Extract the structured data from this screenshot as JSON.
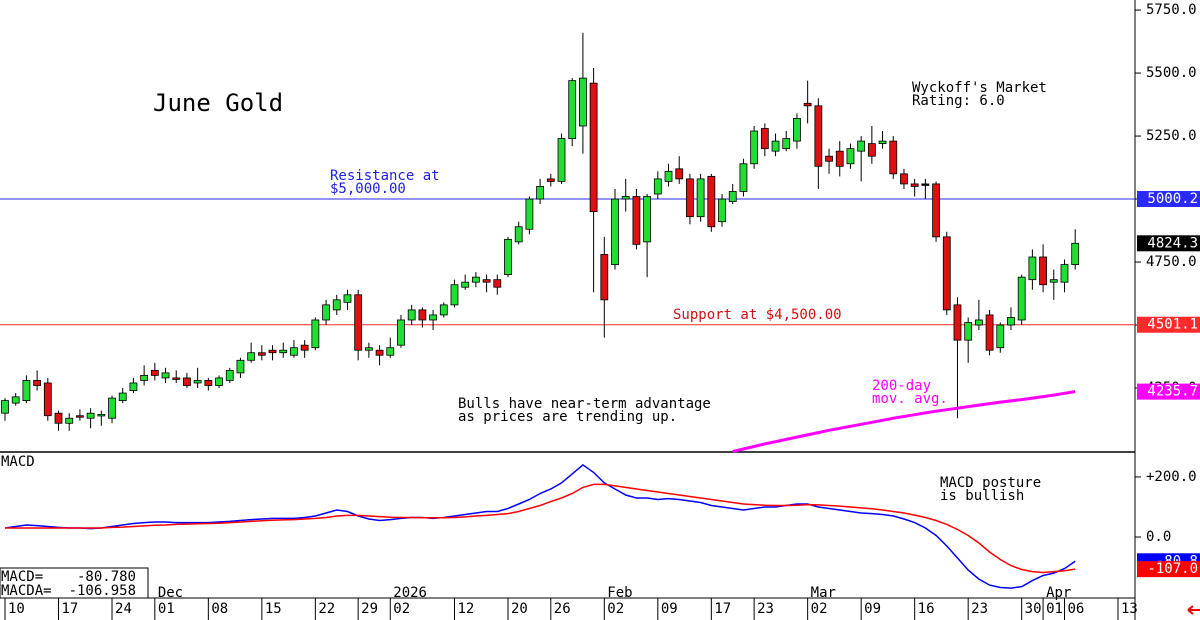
{
  "chart_data": [
    {
      "type": "candlestick",
      "title": "June Gold",
      "categories": [
        "10",
        null,
        null,
        null,
        null,
        "17",
        null,
        null,
        null,
        null,
        "24",
        null,
        null,
        null,
        "01",
        null,
        null,
        null,
        null,
        "08",
        null,
        null,
        null,
        null,
        "15",
        null,
        null,
        null,
        null,
        "22",
        null,
        null,
        null,
        "29",
        null,
        null,
        "02",
        null,
        null,
        null,
        null,
        null,
        "12",
        null,
        null,
        null,
        null,
        "20",
        null,
        null,
        null,
        "26",
        null,
        null,
        null,
        null,
        "02",
        null,
        null,
        null,
        null,
        "09",
        null,
        null,
        null,
        null,
        "17",
        null,
        null,
        null,
        "23",
        null,
        null,
        null,
        null,
        "02",
        null,
        null,
        null,
        null,
        "09",
        null,
        null,
        null,
        null,
        "16",
        null,
        null,
        null,
        null,
        "23",
        null,
        null,
        null,
        null,
        "30",
        null,
        "01",
        null,
        "06",
        null,
        null,
        null,
        null,
        "13"
      ],
      "months": [
        null,
        null,
        null,
        null,
        null,
        null,
        null,
        null,
        null,
        null,
        null,
        null,
        null,
        null,
        "Dec",
        null,
        null,
        null,
        null,
        null,
        null,
        null,
        null,
        null,
        null,
        null,
        null,
        null,
        null,
        null,
        null,
        null,
        null,
        null,
        null,
        null,
        "2026",
        null,
        null,
        null,
        null,
        null,
        null,
        null,
        null,
        null,
        null,
        null,
        null,
        null,
        null,
        null,
        null,
        null,
        null,
        null,
        "Feb",
        null,
        null,
        null,
        null,
        null,
        null,
        null,
        null,
        null,
        null,
        null,
        null,
        null,
        null,
        null,
        null,
        null,
        null,
        "Mar",
        null,
        null,
        null,
        null,
        null,
        null,
        null,
        null,
        null,
        null,
        null,
        null,
        null,
        null,
        null,
        null,
        null,
        null,
        null,
        null,
        null,
        "Apr",
        null,
        null,
        null,
        null,
        null,
        null,
        null
      ],
      "open": [
        4150,
        4190,
        4200,
        4280,
        4270,
        4150,
        4110,
        4140,
        4130,
        4140,
        4130,
        4200,
        4240,
        4280,
        4320,
        4290,
        4290,
        4290,
        4270,
        4280,
        4260,
        4280,
        4310,
        4360,
        4390,
        4400,
        4390,
        4380,
        4420,
        4410,
        4520,
        4560,
        4590,
        4620,
        4400,
        4400,
        4380,
        4420,
        4520,
        4560,
        4520,
        4540,
        4580,
        4650,
        4670,
        4680,
        4680,
        4700,
        4830,
        4880,
        5000,
        5080,
        5070,
        5240,
        5290,
        5460,
        4780,
        4740,
        5000,
        5010,
        4830,
        5020,
        5070,
        5120,
        5080,
        4930,
        5090,
        4910,
        4990,
        5030,
        5140,
        5280,
        5190,
        5200,
        5230,
        5380,
        5370,
        5170,
        5190,
        5140,
        5190,
        5220,
        5220,
        5230,
        5100,
        5060,
        5060,
        5060,
        4850,
        4580,
        4440,
        4500,
        4540,
        4410,
        4500,
        4520,
        4680,
        4770,
        4670,
        4670,
        4740,
        null,
        null,
        null,
        null
      ],
      "high": [
        4210,
        4230,
        4300,
        4320,
        4290,
        4160,
        4150,
        4165,
        4170,
        4160,
        4220,
        4250,
        4290,
        4340,
        4350,
        4330,
        4320,
        4310,
        4330,
        4290,
        4300,
        4330,
        4370,
        4430,
        4420,
        4420,
        4430,
        4440,
        4440,
        4530,
        4600,
        4620,
        4640,
        4640,
        4430,
        4420,
        4450,
        4540,
        4580,
        4570,
        4560,
        4590,
        4680,
        4700,
        4710,
        4700,
        4700,
        4850,
        4910,
        5010,
        5080,
        5100,
        5260,
        5480,
        5660,
        5520,
        4850,
        5040,
        5080,
        5040,
        5020,
        5110,
        5140,
        5170,
        5100,
        5100,
        5100,
        5020,
        5060,
        5160,
        5290,
        5300,
        5260,
        5270,
        5340,
        5470,
        5400,
        5200,
        5230,
        5220,
        5250,
        5290,
        5270,
        5250,
        5120,
        5080,
        5080,
        5070,
        4870,
        4610,
        4530,
        4600,
        4560,
        4510,
        4570,
        4700,
        4800,
        4820,
        4720,
        4760,
        4880,
        null,
        null,
        null,
        null
      ],
      "low": [
        4120,
        4180,
        4190,
        4240,
        4120,
        4080,
        4080,
        4120,
        4090,
        4100,
        4110,
        4190,
        4230,
        4260,
        4280,
        4270,
        4270,
        4250,
        4250,
        4240,
        4250,
        4270,
        4290,
        4350,
        4360,
        4360,
        4370,
        4370,
        4370,
        4400,
        4500,
        4540,
        4560,
        4360,
        4370,
        4340,
        4370,
        4410,
        4500,
        4490,
        4480,
        4530,
        4570,
        4640,
        4650,
        4630,
        4620,
        4690,
        4820,
        4860,
        4980,
        5050,
        5060,
        5210,
        5180,
        4630,
        4450,
        4720,
        4950,
        4800,
        4690,
        5000,
        5050,
        5060,
        4900,
        4910,
        4870,
        4890,
        4980,
        5010,
        5120,
        5170,
        5170,
        5190,
        5200,
        5300,
        5040,
        5100,
        5090,
        5120,
        5070,
        5140,
        5200,
        5080,
        5040,
        5010,
        5000,
        4830,
        4540,
        4130,
        4350,
        4480,
        4380,
        4390,
        4480,
        4500,
        4640,
        4630,
        4600,
        4630,
        4720,
        null,
        null,
        null,
        null
      ],
      "close": [
        4200,
        4215,
        4280,
        4260,
        4140,
        4110,
        4130,
        4135,
        4150,
        4145,
        4210,
        4230,
        4270,
        4300,
        4300,
        4310,
        4285,
        4260,
        4280,
        4260,
        4290,
        4320,
        4360,
        4390,
        4380,
        4390,
        4400,
        4410,
        4400,
        4520,
        4580,
        4600,
        4620,
        4400,
        4410,
        4380,
        4410,
        4520,
        4560,
        4520,
        4540,
        4580,
        4660,
        4670,
        4690,
        4670,
        4650,
        4840,
        4890,
        5000,
        5050,
        5070,
        5240,
        5470,
        5480,
        4950,
        4600,
        5000,
        5010,
        4820,
        5010,
        5080,
        5110,
        5080,
        4930,
        5080,
        4890,
        5000,
        5030,
        5140,
        5270,
        5200,
        5230,
        5240,
        5320,
        5370,
        5130,
        5150,
        5130,
        5200,
        5230,
        5170,
        5230,
        5100,
        5060,
        5050,
        5060,
        4850,
        4560,
        4440,
        4510,
        4520,
        4400,
        4500,
        4530,
        4690,
        4770,
        4660,
        4680,
        4740,
        4824.3,
        null,
        null,
        null,
        null
      ],
      "up_color": "#22dd33",
      "down_color": "#dd1111",
      "moving_average": {
        "color": "#ff00ff",
        "values": [
          null,
          null,
          null,
          null,
          null,
          null,
          null,
          null,
          null,
          null,
          null,
          null,
          null,
          null,
          null,
          null,
          null,
          null,
          null,
          null,
          null,
          null,
          null,
          null,
          null,
          null,
          null,
          null,
          null,
          null,
          null,
          null,
          null,
          null,
          null,
          null,
          null,
          null,
          null,
          null,
          null,
          null,
          null,
          null,
          null,
          null,
          null,
          null,
          null,
          null,
          null,
          null,
          null,
          null,
          null,
          null,
          null,
          null,
          null,
          null,
          null,
          null,
          null,
          null,
          null,
          null,
          null,
          null,
          3998,
          4008,
          4018,
          4028,
          4037,
          4046,
          4055,
          4064,
          4073,
          4082,
          4090,
          4098,
          4106,
          4114,
          4122,
          4130,
          4137,
          4144,
          4151,
          4158,
          4164,
          4170,
          4176,
          4182,
          4188,
          4194,
          4199,
          4204,
          4210,
          4216,
          4222,
          4229,
          4235.7,
          null,
          null,
          null,
          null
        ]
      },
      "levels": [
        {
          "value": 5000.2,
          "label": "5000.2",
          "color": "#2a2aff"
        },
        {
          "value": 4501.1,
          "label": "4501.1",
          "color": "#ff2a2a"
        }
      ],
      "ylim": [
        3996,
        5790
      ],
      "yticks": [
        {
          "value": 5750,
          "label": "5750.0"
        },
        {
          "value": 5500,
          "label": "5500.0"
        },
        {
          "value": 5250,
          "label": "5250.0"
        },
        {
          "value": 5000,
          "label": "5000.0"
        },
        {
          "value": 4750,
          "label": "4750.0"
        },
        {
          "value": 4500,
          "label": "4500.0"
        },
        {
          "value": 4250,
          "label": "4250.0"
        }
      ],
      "annotations": [
        {
          "lines": [
            "Wyckoff's Market",
            "Rating: 6.0"
          ],
          "color": "#000000"
        },
        {
          "lines": [
            "Resistance at",
            "$5,000.00"
          ],
          "color": "#2020e0"
        },
        {
          "lines": [
            "Support at $4,500.00"
          ],
          "color": "#d01010"
        },
        {
          "lines": [
            "Bulls have near-term advantage",
            "as prices are trending up."
          ],
          "color": "#000000"
        },
        {
          "lines": [
            "200-day",
            "mov. avg."
          ],
          "color": "#ff00ff"
        }
      ]
    },
    {
      "type": "line",
      "title": "MACD",
      "series": [
        {
          "name": "MACD=",
          "color": "#0000ff",
          "readout": "-80.780",
          "axis_label": "-80.8",
          "values": [
            30,
            35,
            40,
            38,
            35,
            32,
            30,
            30,
            28,
            30,
            35,
            40,
            45,
            48,
            50,
            50,
            48,
            48,
            48,
            48,
            50,
            52,
            55,
            58,
            60,
            62,
            62,
            62,
            65,
            70,
            80,
            90,
            85,
            70,
            60,
            55,
            58,
            62,
            65,
            65,
            62,
            65,
            70,
            75,
            80,
            85,
            85,
            95,
            110,
            125,
            145,
            160,
            180,
            210,
            240,
            215,
            180,
            160,
            140,
            130,
            130,
            125,
            128,
            125,
            120,
            115,
            105,
            100,
            95,
            90,
            95,
            100,
            100,
            105,
            110,
            110,
            100,
            95,
            90,
            85,
            80,
            78,
            75,
            70,
            60,
            48,
            30,
            5,
            -30,
            -70,
            -110,
            -140,
            -160,
            -168,
            -170,
            -165,
            -145,
            -128,
            -120,
            -105,
            -80.78,
            null,
            null,
            null,
            null
          ]
        },
        {
          "name": "MACDA=",
          "color": "#ff0000",
          "readout": "-106.958",
          "axis_label": "-107.0",
          "values": [
            30,
            30,
            30,
            30,
            30,
            30,
            30,
            30,
            30,
            30,
            32,
            33,
            35,
            37,
            39,
            40,
            42,
            43,
            44,
            45,
            46,
            48,
            50,
            52,
            54,
            56,
            57,
            58,
            60,
            62,
            65,
            70,
            72,
            72,
            70,
            68,
            66,
            65,
            65,
            64,
            64,
            64,
            65,
            67,
            70,
            72,
            75,
            78,
            85,
            95,
            105,
            118,
            130,
            145,
            165,
            175,
            175,
            170,
            165,
            160,
            155,
            150,
            145,
            140,
            135,
            130,
            125,
            120,
            115,
            110,
            108,
            106,
            105,
            105,
            106,
            108,
            107,
            105,
            103,
            100,
            97,
            94,
            90,
            85,
            80,
            73,
            65,
            55,
            42,
            25,
            5,
            -20,
            -50,
            -75,
            -95,
            -108,
            -115,
            -118,
            -115,
            -112,
            -106.958,
            null,
            null,
            null,
            null
          ]
        }
      ],
      "ylim": [
        -203,
        283
      ],
      "yticks": [
        {
          "value": 200,
          "label": "+200.0"
        },
        {
          "value": 0,
          "label": "0.0"
        }
      ],
      "annotations": [
        {
          "lines": [
            "MACD posture",
            "is bullish"
          ],
          "color": "#000000"
        }
      ]
    }
  ]
}
